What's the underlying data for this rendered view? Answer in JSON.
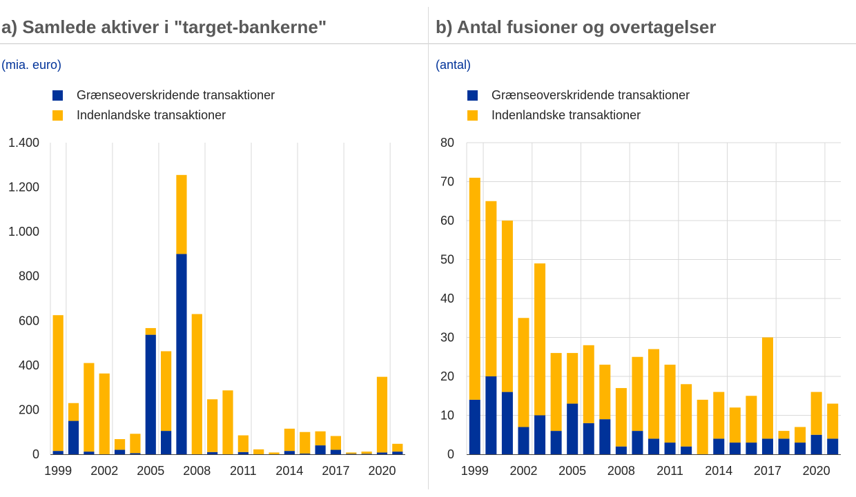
{
  "colors": {
    "cross_border": "#003299",
    "domestic": "#FFB400",
    "title_text": "#595959",
    "unit_text": "#003299",
    "grid": "#d9d9d9"
  },
  "panels": [
    {
      "title": "a) Samlede aktiver i \"target-bankerne\"",
      "unit": "(mia. euro)",
      "legend": [
        "Grænseoverskridende transaktioner",
        "Indenlandske transaktioner"
      ]
    },
    {
      "title": "b) Antal fusioner og overtagelser",
      "unit": "(antal)",
      "legend": [
        "Grænseoverskridende transaktioner",
        "Indenlandske transaktioner"
      ]
    }
  ],
  "chart_data": [
    {
      "type": "bar",
      "stacked": true,
      "title": "a) Samlede aktiver i \"target-bankerne\"",
      "ylabel": "(mia. euro)",
      "x": [
        1999,
        2000,
        2001,
        2002,
        2003,
        2004,
        2005,
        2006,
        2007,
        2008,
        2009,
        2010,
        2011,
        2012,
        2013,
        2014,
        2015,
        2016,
        2017,
        2018,
        2019,
        2020,
        2021
      ],
      "x_tick_labels": [
        "1999",
        "2002",
        "2005",
        "2008",
        "2011",
        "2014",
        "2017",
        "2020"
      ],
      "ylim": [
        0,
        1400
      ],
      "y_ticks": [
        0,
        200,
        400,
        600,
        800,
        1000,
        1200,
        1400
      ],
      "y_tick_labels": [
        "0",
        "200",
        "400",
        "600",
        "800",
        "1.000",
        "1.200",
        "1.400"
      ],
      "grid": "vertical",
      "legend_position": "top-left",
      "series": [
        {
          "name": "Grænseoverskridende transaktioner",
          "color": "#003299",
          "values": [
            15,
            150,
            12,
            0,
            20,
            5,
            537,
            105,
            900,
            0,
            10,
            0,
            10,
            0,
            0,
            15,
            3,
            40,
            20,
            2,
            2,
            8,
            12
          ]
        },
        {
          "name": "Indenlandske transaktioner",
          "color": "#FFB400",
          "values": [
            610,
            80,
            398,
            363,
            48,
            87,
            30,
            358,
            355,
            630,
            237,
            287,
            75,
            22,
            8,
            100,
            97,
            63,
            62,
            6,
            10,
            340,
            35
          ]
        }
      ]
    },
    {
      "type": "bar",
      "stacked": true,
      "title": "b) Antal fusioner og overtagelser",
      "ylabel": "(antal)",
      "x": [
        1999,
        2000,
        2001,
        2002,
        2003,
        2004,
        2005,
        2006,
        2007,
        2008,
        2009,
        2010,
        2011,
        2012,
        2013,
        2014,
        2015,
        2016,
        2017,
        2018,
        2019,
        2020,
        2021
      ],
      "x_tick_labels": [
        "1999",
        "2002",
        "2005",
        "2008",
        "2011",
        "2014",
        "2017",
        "2020"
      ],
      "ylim": [
        0,
        80
      ],
      "y_ticks": [
        0,
        10,
        20,
        30,
        40,
        50,
        60,
        70,
        80
      ],
      "y_tick_labels": [
        "0",
        "10",
        "20",
        "30",
        "40",
        "50",
        "60",
        "70",
        "80"
      ],
      "grid": "both",
      "legend_position": "top-left",
      "series": [
        {
          "name": "Grænseoverskridende transaktioner",
          "color": "#003299",
          "values": [
            14,
            20,
            16,
            7,
            10,
            6,
            13,
            8,
            9,
            2,
            6,
            4,
            3,
            2,
            0,
            4,
            3,
            3,
            4,
            4,
            3,
            5,
            4
          ]
        },
        {
          "name": "Indenlandske transaktioner",
          "color": "#FFB400",
          "values": [
            57,
            45,
            44,
            28,
            39,
            20,
            13,
            20,
            14,
            15,
            19,
            23,
            20,
            16,
            14,
            12,
            9,
            12,
            26,
            2,
            4,
            11,
            9
          ]
        }
      ]
    }
  ]
}
